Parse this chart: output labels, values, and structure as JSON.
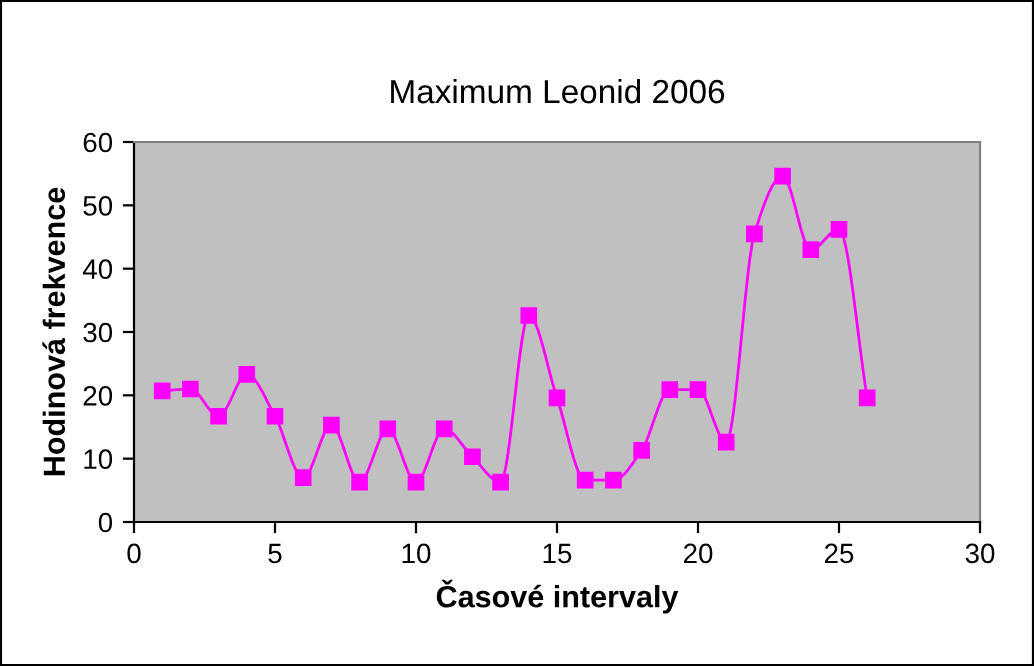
{
  "chart_data": {
    "type": "line",
    "title": "Maximum Leonid 2006",
    "xlabel": "Časové intervaly",
    "ylabel": "Hodinová frekvence",
    "series": [
      {
        "color": "#ff00ff",
        "x": [
          1,
          2,
          3,
          4,
          5,
          6,
          7,
          8,
          9,
          10,
          11,
          12,
          13,
          14,
          15,
          16,
          17,
          18,
          19,
          20,
          21,
          22,
          23,
          24,
          25,
          26
        ],
        "values": [
          20.7,
          21,
          16.7,
          23.3,
          16.7,
          7,
          15.3,
          6.3,
          14.7,
          6.3,
          14.7,
          10.3,
          6.3,
          32.6,
          19.6,
          6.6,
          6.6,
          11.3,
          20.9,
          20.9,
          12.6,
          45.5,
          54.6,
          43,
          46.2,
          19.6
        ]
      }
    ],
    "xlim": [
      0,
      30
    ],
    "xticks": [
      0,
      5,
      10,
      15,
      20,
      25,
      30
    ],
    "ylim": [
      0,
      60
    ],
    "yticks": [
      0,
      10,
      20,
      30,
      40,
      50,
      60
    ],
    "grid": false,
    "legend": false,
    "marker": "square",
    "line_style": "solid"
  }
}
